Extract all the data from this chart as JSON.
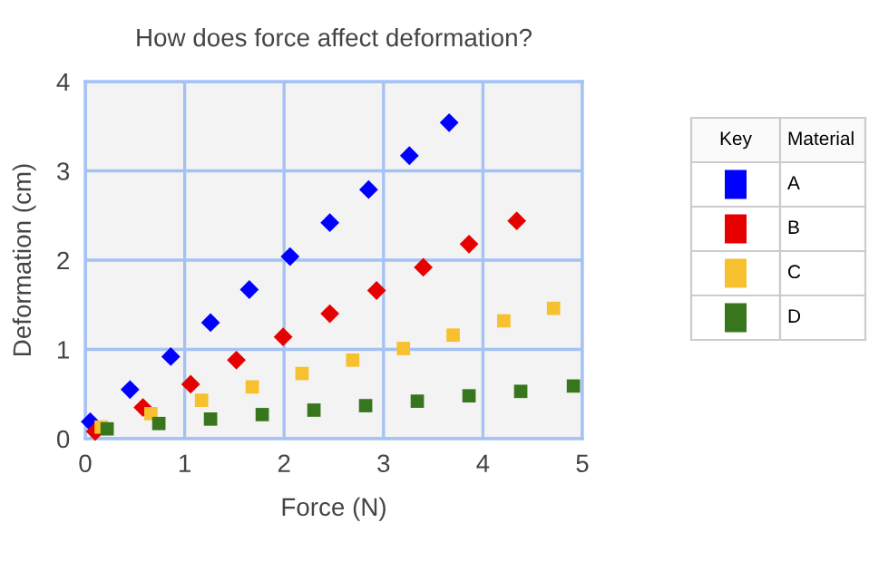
{
  "chart_data": {
    "type": "scatter",
    "title": "How does force affect deformation?",
    "xlabel": "Force (N)",
    "ylabel": "Deformation (cm)",
    "legend_title": "Material",
    "annotations": [
      "Key"
    ],
    "legend": "right",
    "grid": true,
    "xlim": [
      0,
      5
    ],
    "ylim": [
      0,
      4
    ],
    "xticks": [
      0,
      1,
      2,
      3,
      4,
      5
    ],
    "yticks": [
      0,
      1,
      2,
      3,
      4
    ],
    "series": [
      {
        "name": "A",
        "color": "#0000ff",
        "marker": "diamond",
        "x": [
          0.05,
          0.45,
          0.86,
          1.26,
          1.65,
          2.06,
          2.46,
          2.85,
          3.26,
          3.66
        ],
        "values": [
          0.19,
          0.55,
          0.92,
          1.3,
          1.67,
          2.04,
          2.42,
          2.79,
          3.17,
          3.54
        ]
      },
      {
        "name": "B",
        "color": "#e60000",
        "marker": "diamond",
        "x": [
          0.1,
          0.58,
          1.06,
          1.52,
          1.99,
          2.46,
          2.93,
          3.4,
          3.86,
          4.34
        ],
        "values": [
          0.08,
          0.35,
          0.61,
          0.88,
          1.14,
          1.4,
          1.66,
          1.92,
          2.18,
          2.44
        ]
      },
      {
        "name": "C",
        "color": "#f6c02e",
        "marker": "square",
        "x": [
          0.16,
          0.66,
          1.17,
          1.68,
          2.18,
          2.69,
          3.2,
          3.7,
          4.21,
          4.71
        ],
        "values": [
          0.13,
          0.28,
          0.43,
          0.58,
          0.73,
          0.88,
          1.01,
          1.16,
          1.32,
          1.46
        ]
      },
      {
        "name": "D",
        "color": "#38761d",
        "marker": "square",
        "x": [
          0.22,
          0.74,
          1.26,
          1.78,
          2.3,
          2.82,
          3.34,
          3.86,
          4.38,
          4.91
        ],
        "values": [
          0.11,
          0.17,
          0.22,
          0.27,
          0.32,
          0.37,
          0.42,
          0.48,
          0.53,
          0.59
        ]
      }
    ]
  }
}
